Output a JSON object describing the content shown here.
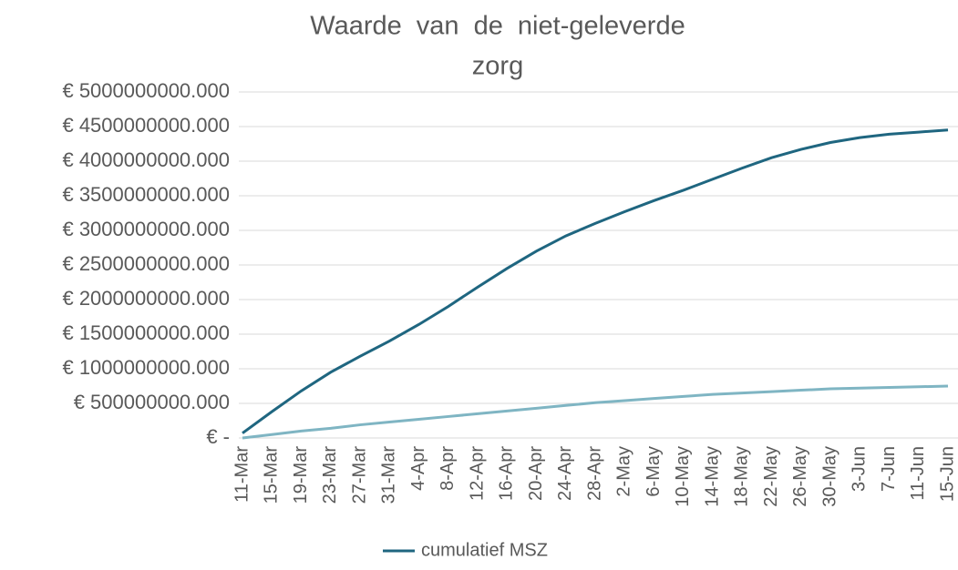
{
  "chart_data": {
    "type": "line",
    "title_lines": [
      "Waarde van de niet-geleverde",
      "zorg"
    ],
    "categories": [
      "11-Mar",
      "15-Mar",
      "19-Mar",
      "23-Mar",
      "27-Mar",
      "31-Mar",
      "4-Apr",
      "8-Apr",
      "12-Apr",
      "16-Apr",
      "20-Apr",
      "24-Apr",
      "28-Apr",
      "2-May",
      "6-May",
      "10-May",
      "14-May",
      "18-May",
      "22-May",
      "26-May",
      "30-May",
      "3-Jun",
      "7-Jun",
      "11-Jun",
      "15-Jun"
    ],
    "series": [
      {
        "name": "cumulatief MSZ",
        "color": "#1f6680",
        "values": [
          70000000,
          380000000,
          680000000,
          950000000,
          1180000000,
          1400000000,
          1640000000,
          1900000000,
          2180000000,
          2450000000,
          2700000000,
          2920000000,
          3100000000,
          3270000000,
          3430000000,
          3580000000,
          3740000000,
          3900000000,
          4050000000,
          4170000000,
          4270000000,
          4340000000,
          4390000000,
          4420000000,
          4450000000
        ]
      },
      {
        "color": "#7fb5c3",
        "values": [
          0,
          50000000,
          100000000,
          140000000,
          190000000,
          230000000,
          270000000,
          310000000,
          350000000,
          390000000,
          430000000,
          470000000,
          510000000,
          540000000,
          570000000,
          600000000,
          630000000,
          650000000,
          670000000,
          690000000,
          710000000,
          720000000,
          730000000,
          740000000,
          750000000
        ]
      }
    ],
    "ylim": [
      0,
      5000000000
    ],
    "yticks": [
      {
        "value": 0,
        "label": "€ -"
      },
      {
        "value": 500000000,
        "label": "€ 500000000.000"
      },
      {
        "value": 1000000000,
        "label": "€ 1000000000.000"
      },
      {
        "value": 1500000000,
        "label": "€ 1500000000.000"
      },
      {
        "value": 2000000000,
        "label": "€ 2000000000.000"
      },
      {
        "value": 2500000000,
        "label": "€ 2500000000.000"
      },
      {
        "value": 3000000000,
        "label": "€ 3000000000.000"
      },
      {
        "value": 3500000000,
        "label": "€ 3500000000.000"
      },
      {
        "value": 4000000000,
        "label": "€ 4000000000.000"
      },
      {
        "value": 4500000000,
        "label": "€ 4500000000.000"
      },
      {
        "value": 5000000000,
        "label": "€ 5000000000.000"
      }
    ],
    "grid": true,
    "legend": "bottom"
  }
}
